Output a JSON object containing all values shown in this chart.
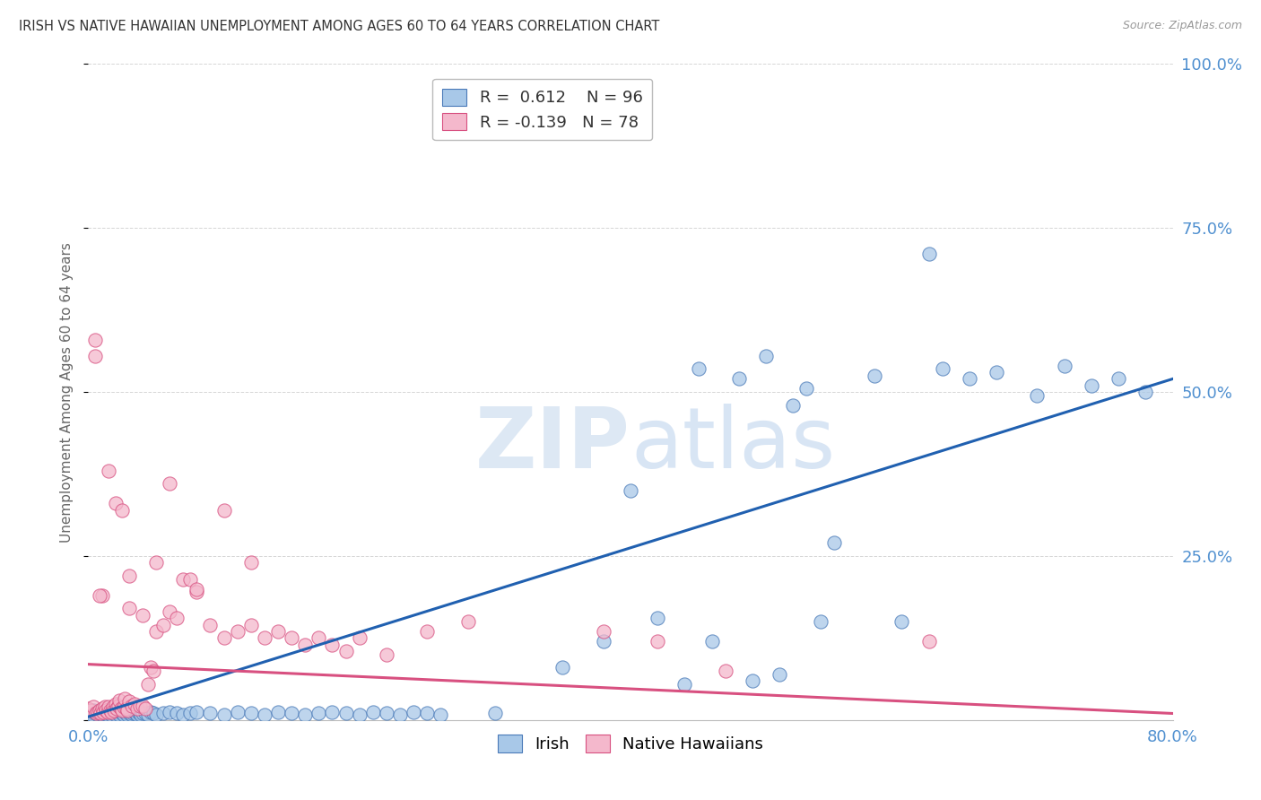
{
  "title": "IRISH VS NATIVE HAWAIIAN UNEMPLOYMENT AMONG AGES 60 TO 64 YEARS CORRELATION CHART",
  "source": "Source: ZipAtlas.com",
  "ylabel": "Unemployment Among Ages 60 to 64 years",
  "xlim": [
    0.0,
    0.8
  ],
  "ylim": [
    0.0,
    1.0
  ],
  "irish_color": "#a8c8e8",
  "native_color": "#f4b8cc",
  "irish_edge": "#4a7ab8",
  "native_edge": "#d85080",
  "trend_irish_color": "#2060b0",
  "trend_native_color": "#d85080",
  "R_irish": 0.612,
  "N_irish": 96,
  "R_native": -0.139,
  "N_native": 78,
  "background_color": "#ffffff",
  "grid_color": "#cccccc",
  "title_color": "#333333",
  "axis_label_color": "#666666",
  "tick_label_color": "#5090d0",
  "watermark_color": "#dde8f4",
  "irish_trend_x0": 0.0,
  "irish_trend_y0": 0.005,
  "irish_trend_x1": 0.8,
  "irish_trend_y1": 0.52,
  "native_trend_x0": 0.0,
  "native_trend_y0": 0.085,
  "native_trend_x1": 0.8,
  "native_trend_y1": 0.01,
  "irish_x": [
    0.0,
    0.002,
    0.003,
    0.004,
    0.005,
    0.006,
    0.007,
    0.008,
    0.009,
    0.01,
    0.011,
    0.012,
    0.013,
    0.014,
    0.015,
    0.016,
    0.017,
    0.018,
    0.019,
    0.02,
    0.021,
    0.022,
    0.023,
    0.024,
    0.025,
    0.026,
    0.027,
    0.028,
    0.029,
    0.03,
    0.031,
    0.032,
    0.033,
    0.034,
    0.035,
    0.036,
    0.037,
    0.038,
    0.039,
    0.04,
    0.042,
    0.044,
    0.046,
    0.048,
    0.05,
    0.055,
    0.06,
    0.065,
    0.07,
    0.075,
    0.08,
    0.09,
    0.1,
    0.11,
    0.12,
    0.13,
    0.14,
    0.15,
    0.16,
    0.17,
    0.18,
    0.19,
    0.2,
    0.21,
    0.22,
    0.23,
    0.24,
    0.25,
    0.26,
    0.3,
    0.35,
    0.38,
    0.4,
    0.42,
    0.44,
    0.45,
    0.46,
    0.48,
    0.49,
    0.5,
    0.51,
    0.52,
    0.53,
    0.54,
    0.55,
    0.58,
    0.6,
    0.62,
    0.63,
    0.65,
    0.67,
    0.7,
    0.72,
    0.74,
    0.76,
    0.78
  ],
  "irish_y": [
    0.01,
    0.012,
    0.008,
    0.015,
    0.01,
    0.012,
    0.008,
    0.01,
    0.012,
    0.008,
    0.01,
    0.012,
    0.01,
    0.008,
    0.012,
    0.01,
    0.008,
    0.012,
    0.01,
    0.008,
    0.012,
    0.01,
    0.008,
    0.012,
    0.01,
    0.008,
    0.012,
    0.01,
    0.008,
    0.01,
    0.012,
    0.008,
    0.01,
    0.012,
    0.01,
    0.008,
    0.012,
    0.01,
    0.008,
    0.01,
    0.01,
    0.008,
    0.012,
    0.01,
    0.008,
    0.01,
    0.012,
    0.01,
    0.008,
    0.01,
    0.012,
    0.01,
    0.008,
    0.012,
    0.01,
    0.008,
    0.012,
    0.01,
    0.008,
    0.01,
    0.012,
    0.01,
    0.008,
    0.012,
    0.01,
    0.008,
    0.012,
    0.01,
    0.008,
    0.01,
    0.08,
    0.12,
    0.35,
    0.155,
    0.055,
    0.535,
    0.12,
    0.52,
    0.06,
    0.555,
    0.07,
    0.48,
    0.505,
    0.15,
    0.27,
    0.525,
    0.15,
    0.71,
    0.535,
    0.52,
    0.53,
    0.495,
    0.54,
    0.51,
    0.52,
    0.5
  ],
  "native_x": [
    0.0,
    0.002,
    0.004,
    0.005,
    0.006,
    0.007,
    0.008,
    0.009,
    0.01,
    0.011,
    0.012,
    0.013,
    0.014,
    0.015,
    0.016,
    0.017,
    0.018,
    0.019,
    0.02,
    0.021,
    0.022,
    0.023,
    0.024,
    0.025,
    0.026,
    0.027,
    0.028,
    0.029,
    0.03,
    0.032,
    0.034,
    0.036,
    0.038,
    0.04,
    0.042,
    0.044,
    0.046,
    0.048,
    0.05,
    0.055,
    0.06,
    0.065,
    0.07,
    0.075,
    0.08,
    0.09,
    0.1,
    0.11,
    0.12,
    0.13,
    0.14,
    0.15,
    0.16,
    0.17,
    0.18,
    0.19,
    0.2,
    0.22,
    0.25,
    0.28,
    0.01,
    0.015,
    0.02,
    0.025,
    0.03,
    0.05,
    0.06,
    0.08,
    0.1,
    0.12,
    0.005,
    0.008,
    0.03,
    0.04,
    0.38,
    0.42,
    0.47,
    0.62
  ],
  "native_y": [
    0.018,
    0.015,
    0.02,
    0.58,
    0.01,
    0.012,
    0.015,
    0.01,
    0.018,
    0.012,
    0.02,
    0.015,
    0.012,
    0.02,
    0.015,
    0.012,
    0.02,
    0.015,
    0.025,
    0.018,
    0.022,
    0.03,
    0.018,
    0.015,
    0.02,
    0.032,
    0.018,
    0.015,
    0.028,
    0.022,
    0.025,
    0.018,
    0.022,
    0.022,
    0.018,
    0.055,
    0.08,
    0.075,
    0.135,
    0.145,
    0.165,
    0.155,
    0.215,
    0.215,
    0.195,
    0.145,
    0.125,
    0.135,
    0.145,
    0.125,
    0.135,
    0.125,
    0.115,
    0.125,
    0.115,
    0.105,
    0.125,
    0.1,
    0.135,
    0.15,
    0.19,
    0.38,
    0.33,
    0.32,
    0.22,
    0.24,
    0.36,
    0.2,
    0.32,
    0.24,
    0.555,
    0.19,
    0.17,
    0.16,
    0.135,
    0.12,
    0.075,
    0.12
  ]
}
